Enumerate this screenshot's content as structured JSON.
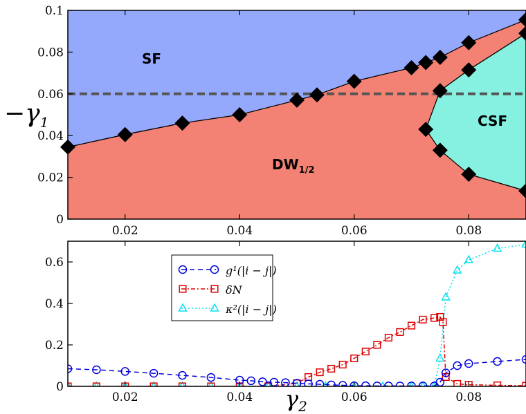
{
  "chart_data": [
    {
      "type": "area",
      "panel": "top",
      "xlim": [
        0.01,
        0.09
      ],
      "ylim": [
        0,
        0.1
      ],
      "ylabel_text": "−γ",
      "ylabel_sub": "1",
      "x_ticks": [
        "0.02",
        "0.04",
        "0.06",
        "0.08"
      ],
      "y_ticks": [
        "0",
        "0.02",
        "0.04",
        "0.06",
        "0.08",
        "0.1"
      ],
      "regions": [
        {
          "label": "SF",
          "color": "#94a8fc"
        },
        {
          "label": "DW",
          "label_sub": "1/2",
          "color": "#f48274"
        },
        {
          "label": "CSF",
          "color": "#86f1e0"
        }
      ],
      "boundary_sf_dw": {
        "x": [
          0.01,
          0.02,
          0.03,
          0.04,
          0.05,
          0.0535,
          0.06,
          0.07,
          0.0725,
          0.075,
          0.08,
          0.09
        ],
        "y": [
          0.0345,
          0.0405,
          0.046,
          0.05,
          0.057,
          0.0595,
          0.066,
          0.0725,
          0.075,
          0.0775,
          0.0845,
          0.0955
        ]
      },
      "boundary_csf": {
        "x": [
          0.09,
          0.08,
          0.075,
          0.0725,
          0.075,
          0.08,
          0.09
        ],
        "y": [
          0.089,
          0.0715,
          0.0615,
          0.043,
          0.033,
          0.0215,
          0.0135
        ]
      },
      "dashed_line_y": 0.06
    },
    {
      "type": "line",
      "panel": "bottom",
      "xlim": [
        0.01,
        0.09
      ],
      "ylim": [
        0,
        0.7
      ],
      "xlabel_text": "γ",
      "xlabel_sub": "2",
      "x_ticks": [
        "0.02",
        "0.04",
        "0.06",
        "0.08"
      ],
      "y_ticks": [
        "0",
        "0.2",
        "0.4",
        "0.6"
      ],
      "legend_position": "top-left",
      "series": [
        {
          "name": "g¹(|i − j|)",
          "color": "#0000dd",
          "marker": "circle",
          "x": [
            0.01,
            0.015,
            0.02,
            0.025,
            0.03,
            0.035,
            0.04,
            0.042,
            0.044,
            0.046,
            0.048,
            0.05,
            0.052,
            0.054,
            0.056,
            0.058,
            0.06,
            0.062,
            0.064,
            0.066,
            0.068,
            0.07,
            0.072,
            0.074,
            0.075,
            0.076,
            0.078,
            0.08,
            0.085,
            0.09
          ],
          "y": [
            0.085,
            0.08,
            0.072,
            0.063,
            0.053,
            0.043,
            0.03,
            0.027,
            0.022,
            0.02,
            0.018,
            0.015,
            0.012,
            0.01,
            0.007,
            0.005,
            0.003,
            0.003,
            0.002,
            0.002,
            0.002,
            0.002,
            0.002,
            0.002,
            0.02,
            0.065,
            0.1,
            0.11,
            0.12,
            0.13
          ]
        },
        {
          "name": "δN",
          "color": "#dd0000",
          "marker": "square",
          "x": [
            0.01,
            0.015,
            0.02,
            0.025,
            0.03,
            0.035,
            0.04,
            0.045,
            0.05,
            0.052,
            0.054,
            0.056,
            0.058,
            0.06,
            0.062,
            0.064,
            0.066,
            0.068,
            0.07,
            0.072,
            0.074,
            0.075,
            0.0755,
            0.076,
            0.078,
            0.08,
            0.085,
            0.09
          ],
          "y": [
            0,
            0,
            0,
            0,
            0,
            0,
            0,
            0,
            0.015,
            0.045,
            0.068,
            0.085,
            0.105,
            0.135,
            0.168,
            0.2,
            0.235,
            0.262,
            0.293,
            0.322,
            0.33,
            0.335,
            0.31,
            0.045,
            0.012,
            0.008,
            0.005,
            0.003
          ]
        },
        {
          "name": "κ²(|i − j|)",
          "color": "#00e0f0",
          "marker": "triangle",
          "x": [
            0.01,
            0.015,
            0.02,
            0.025,
            0.03,
            0.035,
            0.04,
            0.045,
            0.05,
            0.055,
            0.06,
            0.065,
            0.07,
            0.072,
            0.074,
            0.075,
            0.076,
            0.078,
            0.08,
            0.085,
            0.09
          ],
          "y": [
            0,
            0,
            0,
            0,
            0,
            0,
            0,
            0,
            0,
            0,
            0,
            0,
            0,
            0,
            0,
            0.135,
            0.43,
            0.56,
            0.61,
            0.665,
            0.685
          ]
        }
      ]
    }
  ]
}
